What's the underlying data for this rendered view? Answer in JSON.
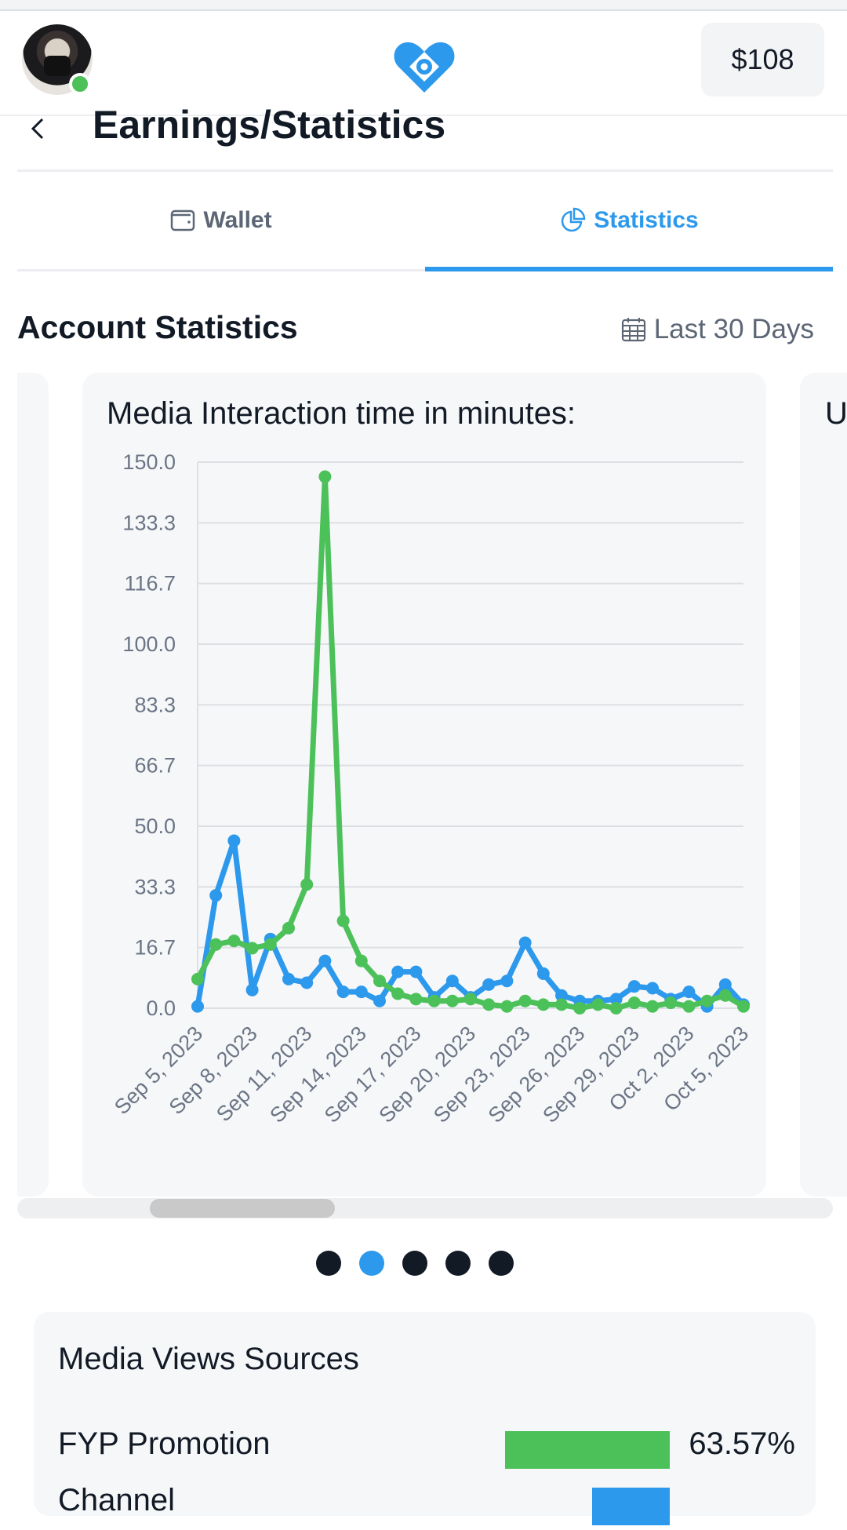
{
  "header": {
    "balance": "$108",
    "avatar_status": "online"
  },
  "title_bar": {
    "title": "Earnings/Statistics"
  },
  "tabs": [
    {
      "label": "Wallet",
      "icon": "wallet-icon",
      "active": false
    },
    {
      "label": "Statistics",
      "icon": "pie-chart-icon",
      "active": true
    }
  ],
  "account_statistics": {
    "title": "Account Statistics",
    "date_range": "Last 30 Days",
    "date_icon": "calendar-icon"
  },
  "card": {
    "title": "Media Interaction time in minutes:",
    "next_card_peek": "U"
  },
  "chart_data": {
    "type": "line",
    "title": "Media Interaction time in minutes:",
    "ylim": [
      0,
      150
    ],
    "yticks": [
      "150.0",
      "133.3",
      "116.7",
      "100.0",
      "83.3",
      "66.7",
      "50.0",
      "33.3",
      "16.7",
      "0.0"
    ],
    "x": [
      "Sep 5, 2023",
      "Sep 6, 2023",
      "Sep 7, 2023",
      "Sep 8, 2023",
      "Sep 9, 2023",
      "Sep 10, 2023",
      "Sep 11, 2023",
      "Sep 12, 2023",
      "Sep 13, 2023",
      "Sep 14, 2023",
      "Sep 15, 2023",
      "Sep 16, 2023",
      "Sep 17, 2023",
      "Sep 18, 2023",
      "Sep 19, 2023",
      "Sep 20, 2023",
      "Sep 21, 2023",
      "Sep 22, 2023",
      "Sep 23, 2023",
      "Sep 24, 2023",
      "Sep 25, 2023",
      "Sep 26, 2023",
      "Sep 27, 2023",
      "Sep 28, 2023",
      "Sep 29, 2023",
      "Sep 30, 2023",
      "Oct 1, 2023",
      "Oct 2, 2023",
      "Oct 3, 2023",
      "Oct 4, 2023",
      "Oct 5, 2023"
    ],
    "xticks": [
      "Sep 5, 2023",
      "Sep 8, 2023",
      "Sep 11, 2023",
      "Sep 14, 2023",
      "Sep 17, 2023",
      "Sep 20, 2023",
      "Sep 23, 2023",
      "Sep 26, 2023",
      "Sep 29, 2023",
      "Oct 2, 2023",
      "Oct 5, 2023"
    ],
    "grid": true,
    "series": [
      {
        "color": "#2d99ec",
        "values": [
          0.5,
          31,
          46,
          5,
          19,
          8,
          7,
          13,
          4.5,
          4.5,
          2,
          10,
          10,
          3,
          7.5,
          3,
          6.5,
          7.5,
          18,
          9.5,
          3.5,
          2,
          2,
          2.5,
          6,
          5.5,
          2.5,
          4.5,
          0.5,
          6.5,
          1
        ]
      },
      {
        "color": "#4cc15a",
        "values": [
          8,
          17.5,
          18.5,
          16.5,
          17.5,
          22,
          34,
          146,
          24,
          13,
          7.5,
          4,
          2.5,
          2,
          2,
          2.5,
          1,
          0.5,
          2,
          1,
          1,
          0,
          1,
          0,
          1.5,
          0.5,
          1.5,
          0.5,
          2,
          3.5,
          0.5
        ]
      }
    ]
  },
  "carousel": {
    "page_count": 5,
    "active_index": 1
  },
  "media_views_sources": {
    "title": "Media Views Sources",
    "rows": [
      {
        "label": "FYP Promotion",
        "value": "63.57%",
        "fraction": 0.6357,
        "color": "#4cc15a"
      },
      {
        "label": "Channel",
        "value": "",
        "fraction": 0.3,
        "color": "#2d99ec"
      }
    ]
  }
}
